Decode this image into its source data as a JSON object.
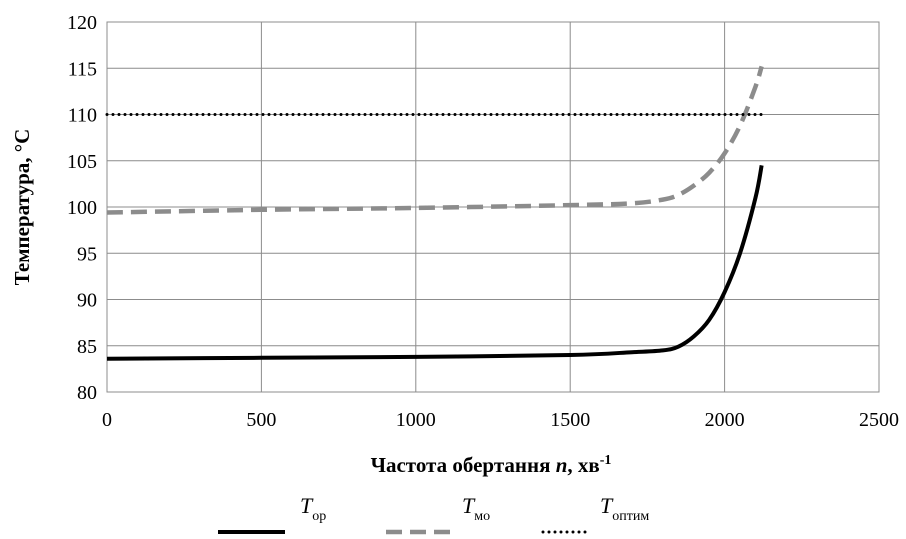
{
  "chart_data": {
    "type": "line",
    "xlabel": "Частота обертання n, хв-1",
    "xlabel_parts": {
      "prefix": "Частота обертання ",
      "var": "n",
      "rest": ", хв",
      "sup": "-1"
    },
    "ylabel": "Температура, °C",
    "xlim": [
      0,
      2500
    ],
    "ylim": [
      80,
      120
    ],
    "xticks": [
      0,
      500,
      1000,
      1500,
      2000,
      2500
    ],
    "yticks": [
      80,
      85,
      90,
      95,
      100,
      105,
      110,
      115,
      120
    ],
    "grid": true,
    "legend_position": "bottom",
    "series": [
      {
        "name": "Tор",
        "label_main": "T",
        "label_sub": "ор",
        "style": "solid",
        "color": "#000000",
        "x": [
          0,
          500,
          1000,
          1500,
          1700,
          1800,
          1850,
          1900,
          1950,
          2000,
          2050,
          2100,
          2120
        ],
        "y": [
          83.6,
          83.7,
          83.8,
          84.0,
          84.3,
          84.5,
          84.9,
          86.0,
          87.8,
          90.8,
          95.0,
          101.0,
          104.5
        ]
      },
      {
        "name": "Tмо",
        "label_main": "T",
        "label_sub": "мо",
        "style": "dashed",
        "color": "#8c8c8c",
        "x": [
          0,
          500,
          1000,
          1500,
          1700,
          1800,
          1850,
          1900,
          1950,
          2000,
          2050,
          2100,
          2120
        ],
        "y": [
          99.4,
          99.7,
          99.9,
          100.2,
          100.4,
          100.8,
          101.3,
          102.3,
          103.7,
          105.8,
          108.8,
          113.0,
          115.2
        ]
      },
      {
        "name": "Tоптим",
        "label_main": "T",
        "label_sub": "оптим",
        "style": "dotted",
        "color": "#000000",
        "x": [
          0,
          2120
        ],
        "y": [
          110,
          110
        ]
      }
    ]
  }
}
